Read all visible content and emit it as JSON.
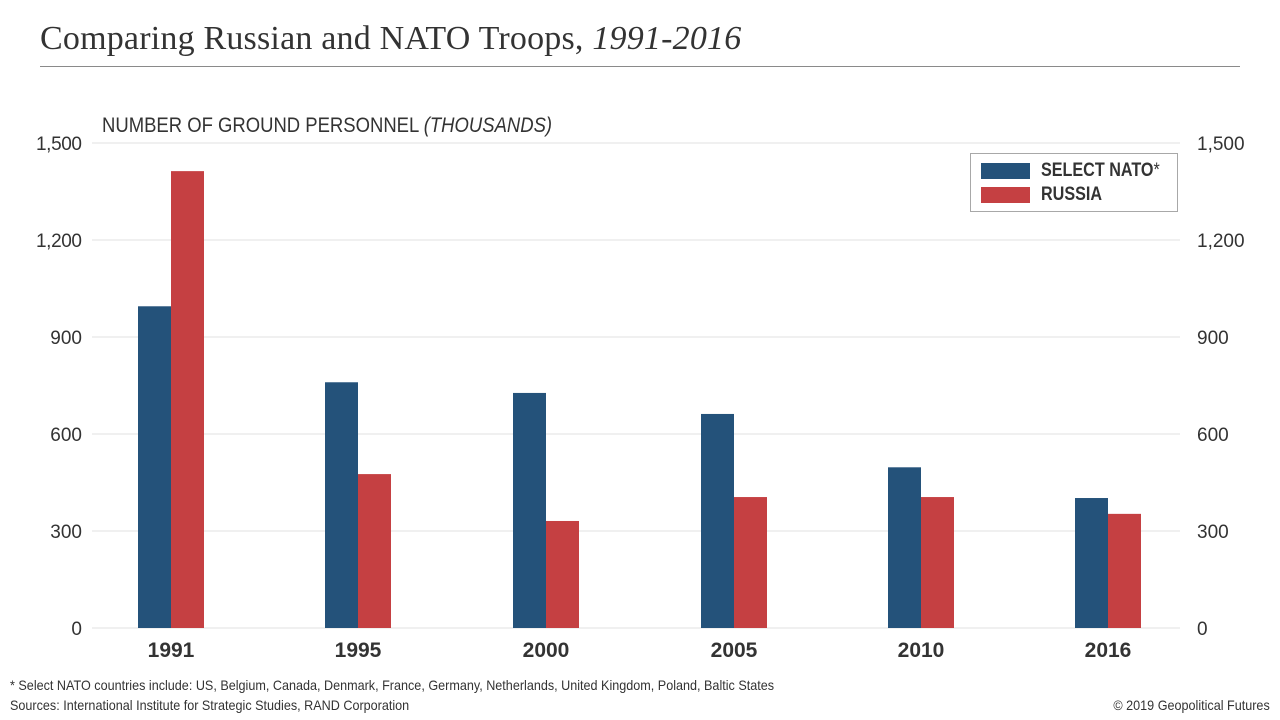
{
  "header": {
    "title_main": "Comparing Russian and NATO Troops,",
    "title_years": "1991-2016"
  },
  "chart_data": {
    "type": "bar",
    "title": "Comparing Russian and NATO Troops, 1991-2016",
    "ylabel_main": "NUMBER OF GROUND PERSONNEL",
    "ylabel_unit": "(THOUSANDS)",
    "xlabel": "",
    "categories": [
      "1991",
      "1995",
      "2000",
      "2005",
      "2010",
      "2016"
    ],
    "series": [
      {
        "name": "SELECT NATO",
        "name_suffix": "*",
        "color": "#24527a",
        "values": [
          995,
          760,
          727,
          662,
          497,
          402
        ]
      },
      {
        "name": "RUSSIA",
        "name_suffix": "",
        "color": "#c54042",
        "values": [
          1413,
          476,
          331,
          405,
          405,
          353
        ]
      }
    ],
    "ylim": [
      0,
      1500
    ],
    "yticks": [
      0,
      300,
      600,
      900,
      1200,
      1500
    ],
    "ytick_labels": [
      "0",
      "300",
      "600",
      "900",
      "1,200",
      "1,500"
    ],
    "secondary_y_axis": true,
    "grid": true,
    "legend_position": "top-right"
  },
  "footer": {
    "footnote": "* Select NATO countries include: US, Belgium, Canada, Denmark, France, Germany, Netherlands, United Kingdom, Poland, Baltic States",
    "sources": "Sources: International Institute for Strategic Studies, RAND Corporation",
    "copyright": "© 2019 Geopolitical Futures"
  }
}
